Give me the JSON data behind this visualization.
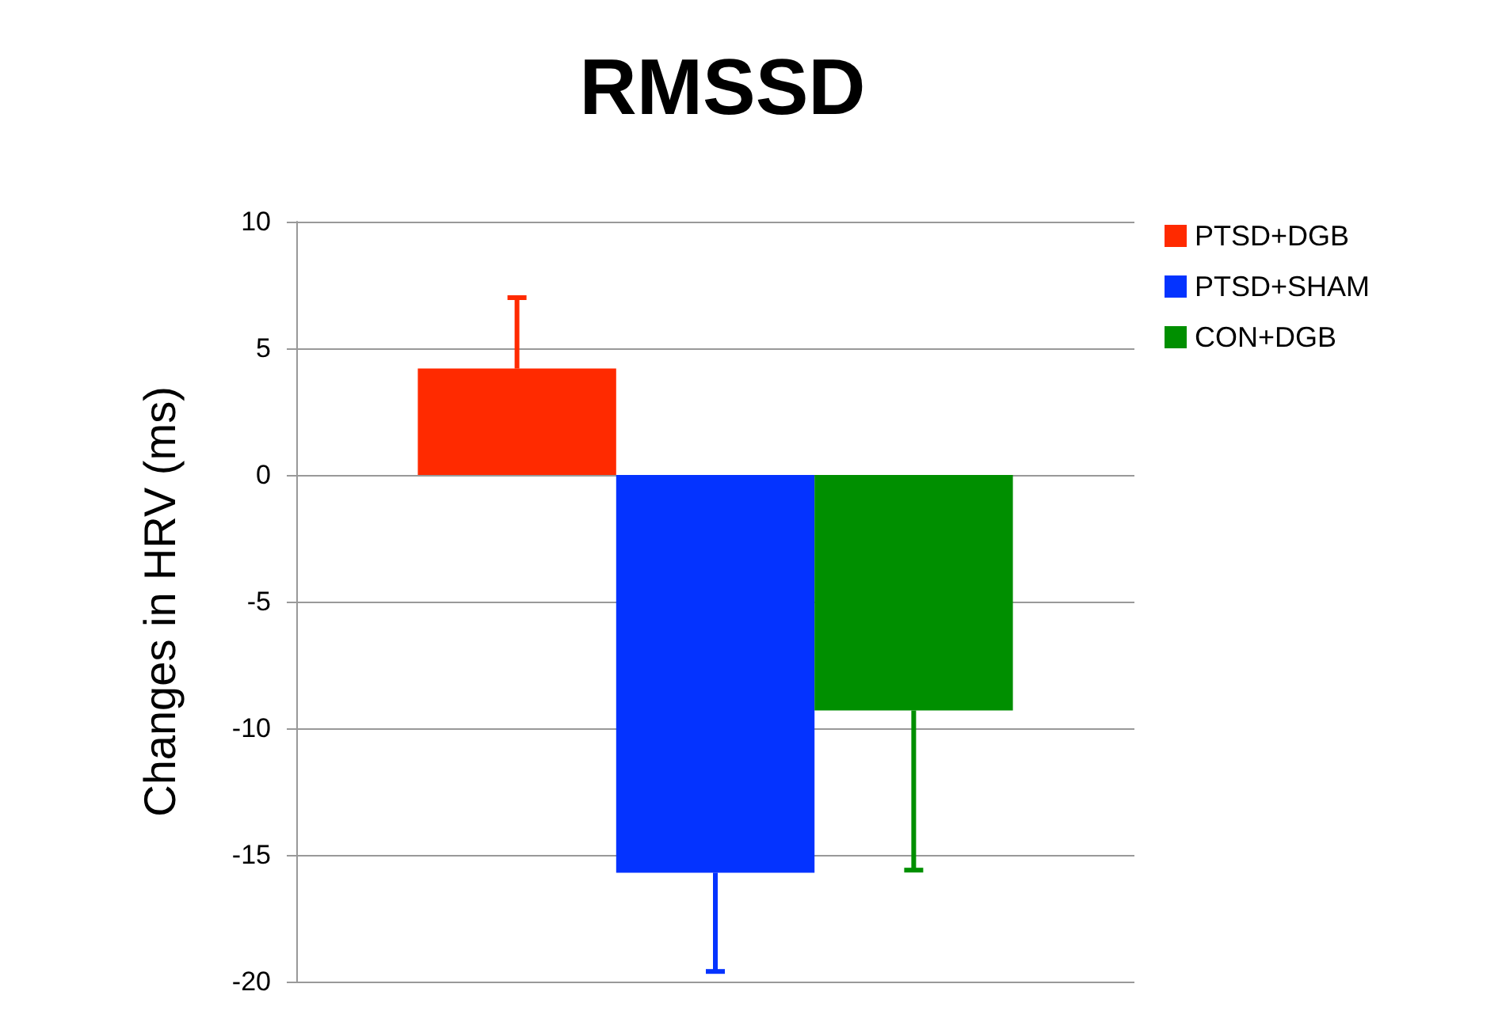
{
  "chart_data": {
    "type": "bar",
    "title": "RMSSD",
    "ylabel": "Changes in HRV (ms)",
    "categories": [
      null
    ],
    "series": [
      {
        "name": "PTSD+DGB",
        "color": "#ff2a00",
        "values": [
          4.2
        ],
        "errors": [
          [
            4.2,
            7.0
          ]
        ]
      },
      {
        "name": "PTSD+SHAM",
        "color": "#0433ff",
        "values": [
          -15.7
        ],
        "errors": [
          [
            -19.6,
            -15.7
          ]
        ]
      },
      {
        "name": "CON+DGB",
        "color": "#008f00",
        "values": [
          -9.3
        ],
        "errors": [
          [
            -15.6,
            -9.3
          ]
        ]
      }
    ],
    "ylim": [
      -20,
      10
    ],
    "yticks": [
      -20,
      -15,
      -10,
      -5,
      0,
      5,
      10
    ],
    "grid": "y",
    "legend": "top right"
  }
}
